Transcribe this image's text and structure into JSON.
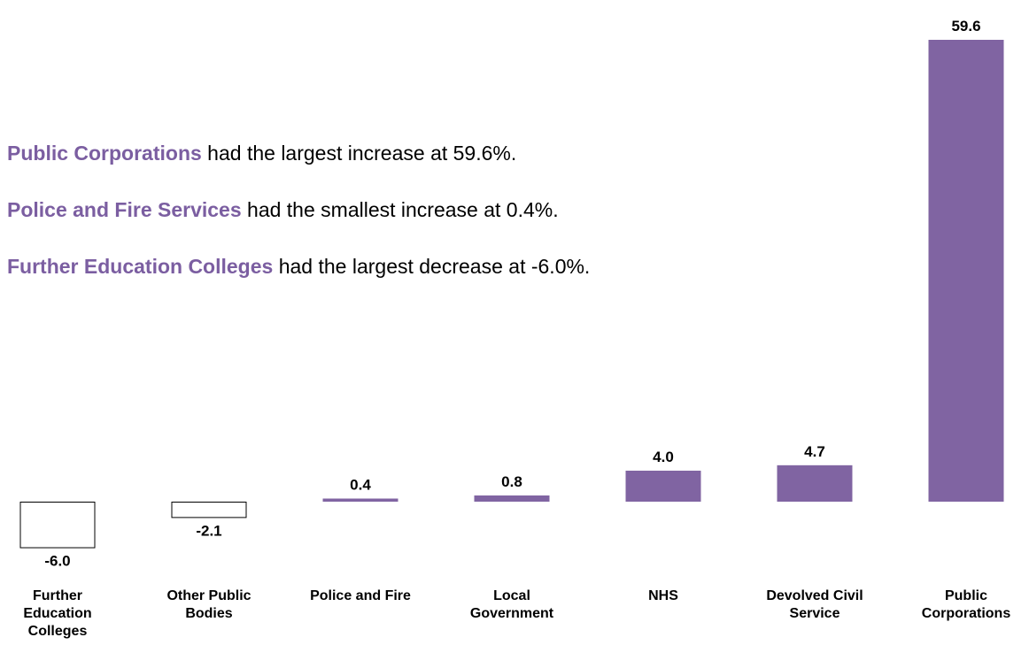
{
  "chart_data": {
    "type": "bar",
    "categories": [
      [
        "Further",
        "Education",
        "Colleges"
      ],
      [
        "Other Public",
        "Bodies"
      ],
      [
        "Police and Fire"
      ],
      [
        "Local",
        "Government"
      ],
      [
        "NHS"
      ],
      [
        "Devolved Civil",
        "Service"
      ],
      [
        "Public",
        "Corporations"
      ]
    ],
    "values": [
      -6.0,
      -2.1,
      0.4,
      0.8,
      4.0,
      4.7,
      59.6
    ],
    "value_labels": [
      "-6.0",
      "-2.1",
      "0.4",
      "0.8",
      "4.0",
      "4.7",
      "59.6"
    ],
    "title": "",
    "xlabel": "",
    "ylabel": "",
    "ylim": [
      -6.0,
      59.6
    ],
    "grid": false,
    "colors": {
      "positive_bar": "#8064a2",
      "negative_bar_fill": "#ffffff",
      "negative_bar_stroke": "#000000",
      "highlight_text": "#7b5ea1"
    }
  },
  "annotations": [
    {
      "highlight": "Public Corporations",
      "text": " had the largest increase at 59.6%."
    },
    {
      "highlight": "Police and Fire Services",
      "text": " had the smallest increase at 0.4%."
    },
    {
      "highlight": "Further Education Colleges",
      "text": " had the largest decrease at -6.0%."
    }
  ]
}
